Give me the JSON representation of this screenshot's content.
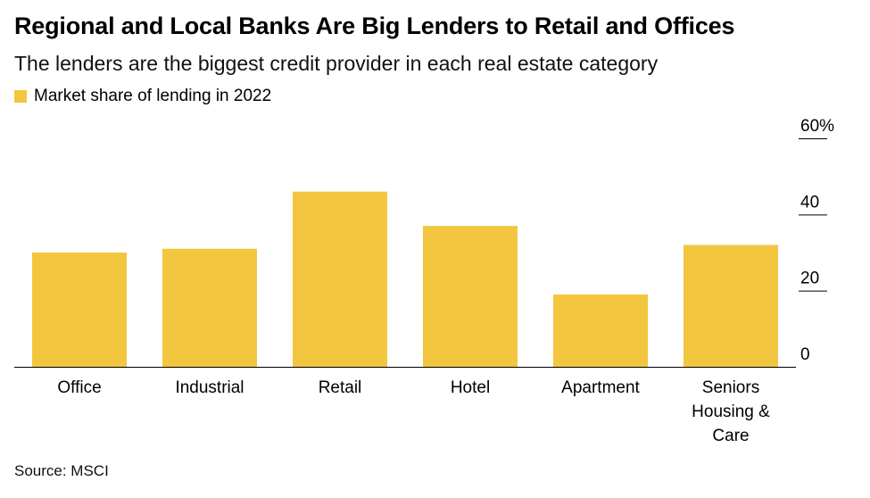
{
  "title": "Regional and Local Banks Are Big Lenders to Retail and Offices",
  "subtitle": "The lenders are the biggest credit provider in each real estate category",
  "source": "Source: MSCI",
  "chart_data": {
    "type": "bar",
    "categories": [
      "Office",
      "Industrial",
      "Retail",
      "Hotel",
      "Apartment",
      "Seniors Housing & Care"
    ],
    "series": [
      {
        "name": "Market share of lending in 2022",
        "values": [
          30,
          31,
          46,
          37,
          19,
          32
        ]
      }
    ],
    "ylim": [
      0,
      60
    ],
    "yticks": [
      0,
      20,
      40,
      60
    ],
    "ytick_labels": [
      "0",
      "20",
      "40",
      "60%"
    ],
    "color": "#f3c63f",
    "legend_position": "top-left",
    "grid": false
  }
}
